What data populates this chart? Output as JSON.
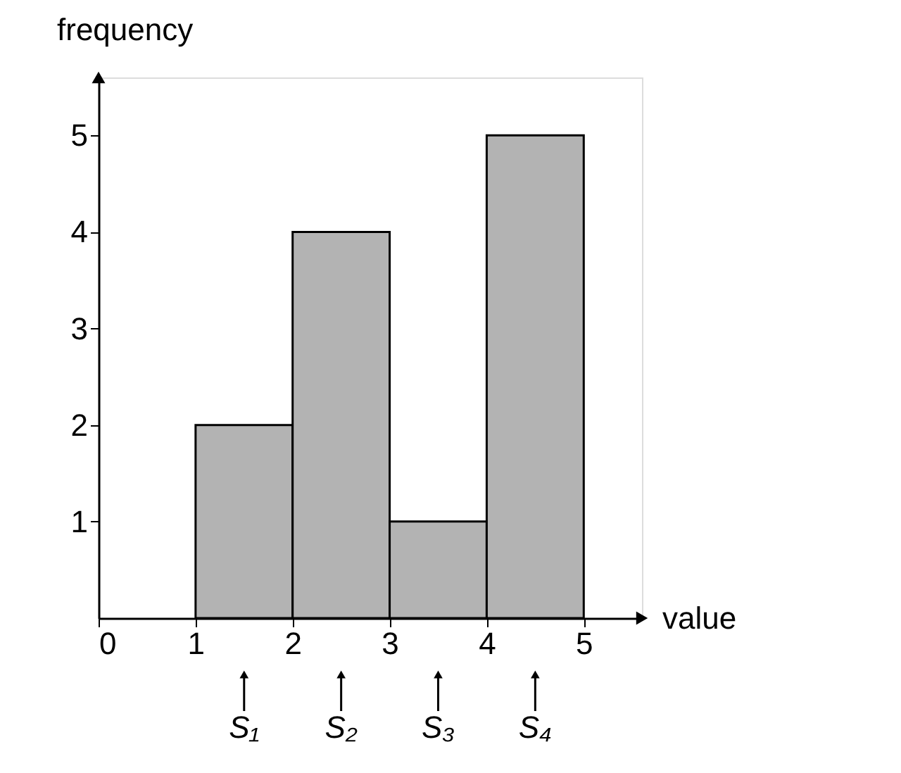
{
  "chart_data": {
    "type": "histogram",
    "xlabel": "value",
    "ylabel": "frequency",
    "bins": [
      1,
      2,
      3,
      4,
      5
    ],
    "values": [
      2,
      4,
      1,
      5
    ],
    "color": "#b3b3b3",
    "xlim": [
      0,
      5.6
    ],
    "xticks": [
      0,
      1,
      2,
      3,
      4,
      5
    ],
    "ylim": [
      0,
      5.6
    ],
    "yticks": [
      1,
      2,
      3,
      4,
      5
    ],
    "annotations": [
      "S₁",
      "S₂",
      "S₃",
      "S₄"
    ],
    "grid": false
  }
}
